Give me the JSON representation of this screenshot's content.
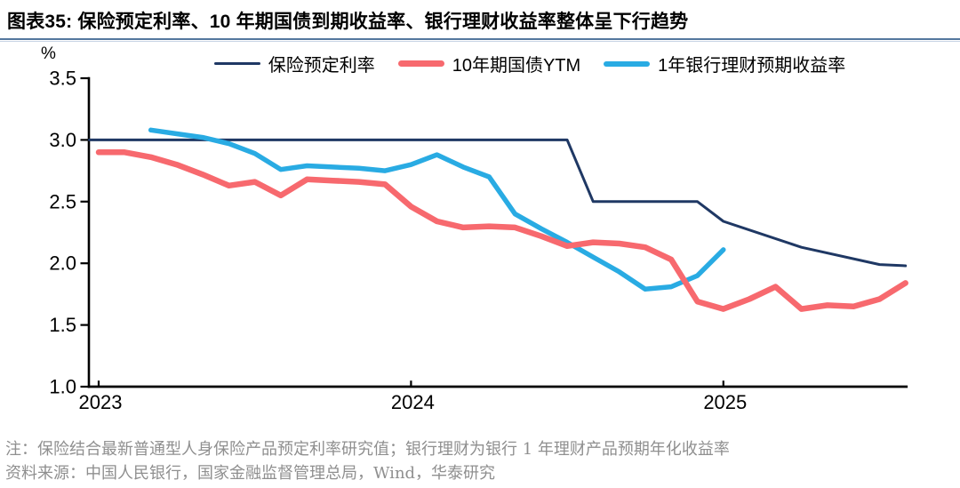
{
  "header": {
    "title": "图表35:  保险预定利率、10 年期国债到期收益率、银行理财收益率整体呈下行趋势"
  },
  "chart_data": {
    "type": "line",
    "y_unit": "%",
    "ylim": [
      1.0,
      3.5
    ],
    "yticks": [
      "3.5",
      "3.0",
      "2.5",
      "2.0",
      "1.5",
      "1.0"
    ],
    "xticks": [
      2023,
      2024,
      2025
    ],
    "xlim": [
      2022.97,
      2025.59
    ],
    "grid": false,
    "legend_position": "top",
    "series": [
      {
        "id": "insurance-predetermined-rate",
        "name": "保险预定利率",
        "color": "#1f3864",
        "width": 3,
        "x": [
          2022.97,
          2024.5,
          2024.583,
          2024.917,
          2025.0,
          2025.25,
          2025.5,
          2025.583
        ],
        "y": [
          3.0,
          3.0,
          2.5,
          2.5,
          2.34,
          2.13,
          1.99,
          1.98
        ]
      },
      {
        "id": "cgb-10y-ytm",
        "name": "10年期国债YTM",
        "color": "#f7696e",
        "width": 6.5,
        "x": [
          2023.0,
          2023.083,
          2023.167,
          2023.25,
          2023.333,
          2023.417,
          2023.5,
          2023.583,
          2023.667,
          2023.75,
          2023.833,
          2023.917,
          2024.0,
          2024.083,
          2024.167,
          2024.25,
          2024.333,
          2024.417,
          2024.5,
          2024.583,
          2024.667,
          2024.75,
          2024.833,
          2024.917,
          2025.0,
          2025.083,
          2025.167,
          2025.25,
          2025.333,
          2025.417,
          2025.5,
          2025.583
        ],
        "y": [
          2.9,
          2.9,
          2.86,
          2.8,
          2.72,
          2.63,
          2.66,
          2.55,
          2.68,
          2.67,
          2.66,
          2.64,
          2.46,
          2.34,
          2.29,
          2.3,
          2.29,
          2.22,
          2.14,
          2.17,
          2.16,
          2.13,
          2.03,
          1.69,
          1.63,
          1.71,
          1.81,
          1.63,
          1.66,
          1.65,
          1.71,
          1.84
        ]
      },
      {
        "id": "bank-wmp-1y-expected-yield",
        "name": "1年银行理财预期收益率",
        "color": "#29abe3",
        "width": 5.5,
        "x": [
          2023.167,
          2023.25,
          2023.333,
          2023.417,
          2023.5,
          2023.583,
          2023.667,
          2023.75,
          2023.833,
          2023.917,
          2024.0,
          2024.083,
          2024.167,
          2024.25,
          2024.333,
          2024.417,
          2024.5,
          2024.583,
          2024.667,
          2024.75,
          2024.833,
          2024.917,
          2025.0
        ],
        "y": [
          3.08,
          3.05,
          3.02,
          2.97,
          2.89,
          2.76,
          2.79,
          2.78,
          2.77,
          2.75,
          2.8,
          2.88,
          2.78,
          2.7,
          2.4,
          2.28,
          2.17,
          2.05,
          1.93,
          1.79,
          1.81,
          1.9,
          2.11
        ]
      }
    ]
  },
  "footer": {
    "note": "注：保险结合最新普通型人身保险产品预定利率研究值；银行理财为银行 1 年理财产品预期年化收益率",
    "source": "资料来源：中国人民银行，国家金融监督管理总局，Wind，华泰研究"
  }
}
